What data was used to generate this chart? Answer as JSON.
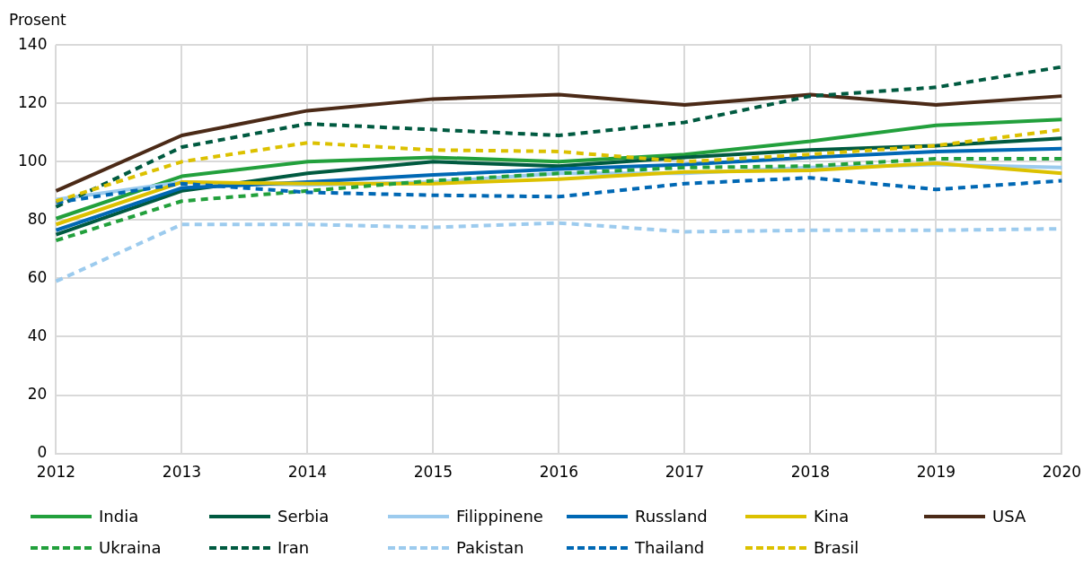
{
  "chart_data": {
    "type": "line",
    "ylabel": "Prosent",
    "categories": [
      "2012",
      "2013",
      "2014",
      "2015",
      "2016",
      "2017",
      "2018",
      "2019",
      "2020"
    ],
    "ylim": [
      0,
      140
    ],
    "yticks": [
      0,
      20,
      40,
      60,
      80,
      100,
      120,
      140
    ],
    "grid": true,
    "legend": "bottom",
    "marker": "none",
    "series": [
      {
        "name": "India",
        "color": "#22a03c",
        "line_style": "solid",
        "values": [
          80.5,
          95,
          100,
          101.5,
          100,
          102.5,
          107,
          112.5,
          114.5
        ]
      },
      {
        "name": "Serbia",
        "color": "#005a40",
        "line_style": "solid",
        "values": [
          75,
          90,
          96,
          100,
          98.5,
          101.5,
          104,
          105.5,
          108
        ]
      },
      {
        "name": "Filippinene",
        "color": "#9ccbee",
        "line_style": "solid",
        "values": [
          87,
          93,
          92,
          93,
          96,
          96,
          98,
          99,
          98
        ]
      },
      {
        "name": "Russland",
        "color": "#0068b4",
        "line_style": "solid",
        "values": [
          76.5,
          91,
          93,
          95.5,
          97.5,
          99,
          101.5,
          103.5,
          104.5
        ]
      },
      {
        "name": "Kina",
        "color": "#dcc100",
        "line_style": "solid",
        "values": [
          78.5,
          93,
          92.5,
          92.5,
          94,
          96.5,
          97,
          99.5,
          96
        ]
      },
      {
        "name": "USA",
        "color": "#4b2a17",
        "line_style": "solid",
        "values": [
          90,
          109,
          117.5,
          121.5,
          123,
          119.5,
          123,
          119.5,
          122.5
        ]
      },
      {
        "name": "Ukraina",
        "color": "#22a03c",
        "line_style": "dashed",
        "values": [
          73,
          86.5,
          90,
          93.5,
          96,
          98,
          98.5,
          101,
          101
        ]
      },
      {
        "name": "Iran",
        "color": "#005a40",
        "line_style": "dashed",
        "values": [
          84.5,
          105,
          113,
          111,
          109,
          113.5,
          122.5,
          125.5,
          132.5
        ]
      },
      {
        "name": "Pakistan",
        "color": "#9ccbee",
        "line_style": "dashed",
        "values": [
          59,
          78.5,
          78.5,
          77.5,
          79,
          76,
          76.5,
          76.5,
          77
        ]
      },
      {
        "name": "Thailand",
        "color": "#0068b4",
        "line_style": "dashed",
        "values": [
          86,
          92.5,
          89.5,
          88.5,
          88,
          92.5,
          94.5,
          90.5,
          93.5
        ]
      },
      {
        "name": "Brasil",
        "color": "#dcc100",
        "line_style": "dashed",
        "values": [
          86.5,
          100,
          106.5,
          104,
          103.5,
          100,
          102.5,
          105.5,
          111
        ]
      }
    ]
  }
}
